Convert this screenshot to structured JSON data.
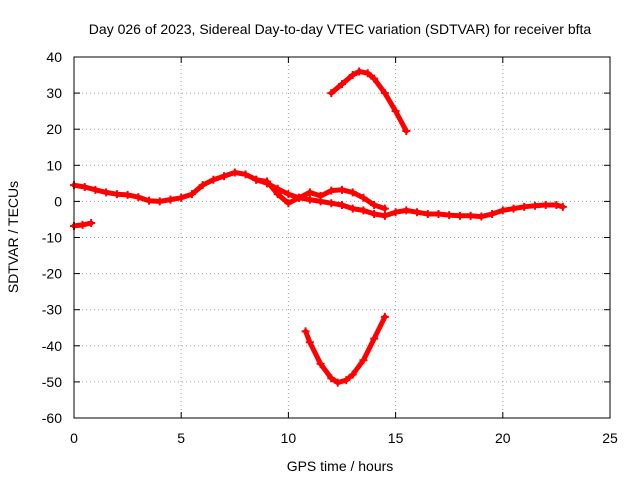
{
  "chart_data": {
    "type": "scatter",
    "title": "Day 026 of 2023, Sidereal Day-to-day VTEC variation (SDTVAR) for receiver bfta",
    "xlabel": "GPS time / hours",
    "ylabel": "SDTVAR / TECUs",
    "xlim": [
      0,
      25
    ],
    "ylim": [
      -60,
      40
    ],
    "xticks": [
      0,
      5,
      10,
      15,
      20,
      25
    ],
    "yticks": [
      40,
      30,
      20,
      10,
      0,
      -10,
      -20,
      -30,
      -40,
      -50,
      -60
    ],
    "grid": true,
    "series_color": "#ff0000",
    "series": [
      {
        "name": "main band",
        "points": [
          [
            0.0,
            4.5
          ],
          [
            0.5,
            4.0
          ],
          [
            1.0,
            3.2
          ],
          [
            1.5,
            2.5
          ],
          [
            2.0,
            2.0
          ],
          [
            2.5,
            1.8
          ],
          [
            3.0,
            1.2
          ],
          [
            3.5,
            0.2
          ],
          [
            4.0,
            0.0
          ],
          [
            4.5,
            0.5
          ],
          [
            5.0,
            1.0
          ],
          [
            5.5,
            2.0
          ],
          [
            6.0,
            4.5
          ],
          [
            6.5,
            6.0
          ],
          [
            7.0,
            7.0
          ],
          [
            7.5,
            8.0
          ],
          [
            8.0,
            7.5
          ],
          [
            8.5,
            6.0
          ],
          [
            9.0,
            5.0
          ],
          [
            9.5,
            3.5
          ],
          [
            10.0,
            2.0
          ],
          [
            10.5,
            1.0
          ],
          [
            11.0,
            0.5
          ],
          [
            11.5,
            0.0
          ],
          [
            12.0,
            -0.5
          ],
          [
            12.5,
            -1.0
          ],
          [
            13.0,
            -2.0
          ],
          [
            13.5,
            -2.5
          ],
          [
            14.0,
            -3.5
          ],
          [
            14.5,
            -4.0
          ],
          [
            15.0,
            -3.0
          ],
          [
            15.5,
            -2.5
          ],
          [
            16.0,
            -3.0
          ],
          [
            16.5,
            -3.5
          ],
          [
            17.0,
            -3.5
          ],
          [
            17.5,
            -3.8
          ],
          [
            18.0,
            -4.0
          ],
          [
            18.5,
            -4.0
          ],
          [
            19.0,
            -4.2
          ],
          [
            19.5,
            -3.5
          ],
          [
            20.0,
            -2.5
          ],
          [
            20.5,
            -2.0
          ],
          [
            21.0,
            -1.5
          ],
          [
            21.5,
            -1.2
          ],
          [
            22.0,
            -1.0
          ],
          [
            22.5,
            -1.0
          ],
          [
            22.8,
            -1.5
          ]
        ]
      },
      {
        "name": "secondary arc",
        "points": [
          [
            8.5,
            6.0
          ],
          [
            9.0,
            5.5
          ],
          [
            9.5,
            2.0
          ],
          [
            10.0,
            -0.5
          ],
          [
            10.5,
            1.0
          ],
          [
            11.0,
            2.5
          ],
          [
            11.5,
            1.5
          ],
          [
            12.0,
            3.0
          ],
          [
            12.5,
            3.2
          ],
          [
            13.0,
            2.5
          ],
          [
            13.5,
            1.0
          ],
          [
            14.0,
            -1.0
          ],
          [
            14.5,
            -2.0
          ]
        ]
      },
      {
        "name": "upper arc",
        "points": [
          [
            12.0,
            30.0
          ],
          [
            12.5,
            32.5
          ],
          [
            13.0,
            35.0
          ],
          [
            13.3,
            36.0
          ],
          [
            13.7,
            35.5
          ],
          [
            14.0,
            34.0
          ],
          [
            14.5,
            30.0
          ],
          [
            15.0,
            25.0
          ],
          [
            15.5,
            19.5
          ]
        ]
      },
      {
        "name": "lower arc",
        "points": [
          [
            10.8,
            -36.0
          ],
          [
            11.0,
            -39.0
          ],
          [
            11.5,
            -45.0
          ],
          [
            12.0,
            -49.0
          ],
          [
            12.3,
            -50.2
          ],
          [
            12.7,
            -49.5
          ],
          [
            13.0,
            -48.0
          ],
          [
            13.5,
            -44.0
          ],
          [
            14.0,
            -38.0
          ],
          [
            14.5,
            -32.0
          ]
        ]
      },
      {
        "name": "short segment",
        "points": [
          [
            0.0,
            -6.8
          ],
          [
            0.4,
            -6.5
          ],
          [
            0.8,
            -6.0
          ]
        ]
      }
    ]
  }
}
